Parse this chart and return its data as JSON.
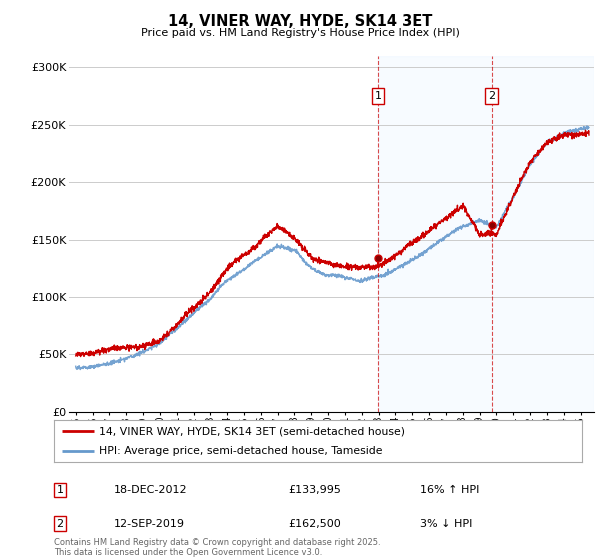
{
  "title": "14, VINER WAY, HYDE, SK14 3ET",
  "subtitle": "Price paid vs. HM Land Registry's House Price Index (HPI)",
  "ylabel_ticks": [
    "£0",
    "£50K",
    "£100K",
    "£150K",
    "£200K",
    "£250K",
    "£300K"
  ],
  "ytick_values": [
    0,
    50000,
    100000,
    150000,
    200000,
    250000,
    300000
  ],
  "ylim": [
    0,
    310000
  ],
  "xlim_start": 1994.6,
  "xlim_end": 2025.8,
  "xtick_years": [
    1995,
    1996,
    1997,
    1998,
    1999,
    2000,
    2001,
    2002,
    2003,
    2004,
    2005,
    2006,
    2007,
    2008,
    2009,
    2010,
    2011,
    2012,
    2013,
    2014,
    2015,
    2016,
    2017,
    2018,
    2019,
    2020,
    2021,
    2022,
    2023,
    2024,
    2025
  ],
  "sale1_x": 2012.96,
  "sale1_y": 133995,
  "sale2_x": 2019.71,
  "sale2_y": 162500,
  "legend_line1": "14, VINER WAY, HYDE, SK14 3ET (semi-detached house)",
  "legend_line2": "HPI: Average price, semi-detached house, Tameside",
  "annotation1_date": "18-DEC-2012",
  "annotation1_price": "£133,995",
  "annotation1_hpi": "16% ↑ HPI",
  "annotation2_date": "12-SEP-2019",
  "annotation2_price": "£162,500",
  "annotation2_hpi": "3% ↓ HPI",
  "footer": "Contains HM Land Registry data © Crown copyright and database right 2025.\nThis data is licensed under the Open Government Licence v3.0.",
  "line_color_red": "#cc0000",
  "line_color_blue": "#6699cc",
  "shaded_color": "#ddeeff",
  "background_color": "#ffffff",
  "grid_color": "#cccccc",
  "dashed_line_color": "#cc0000"
}
